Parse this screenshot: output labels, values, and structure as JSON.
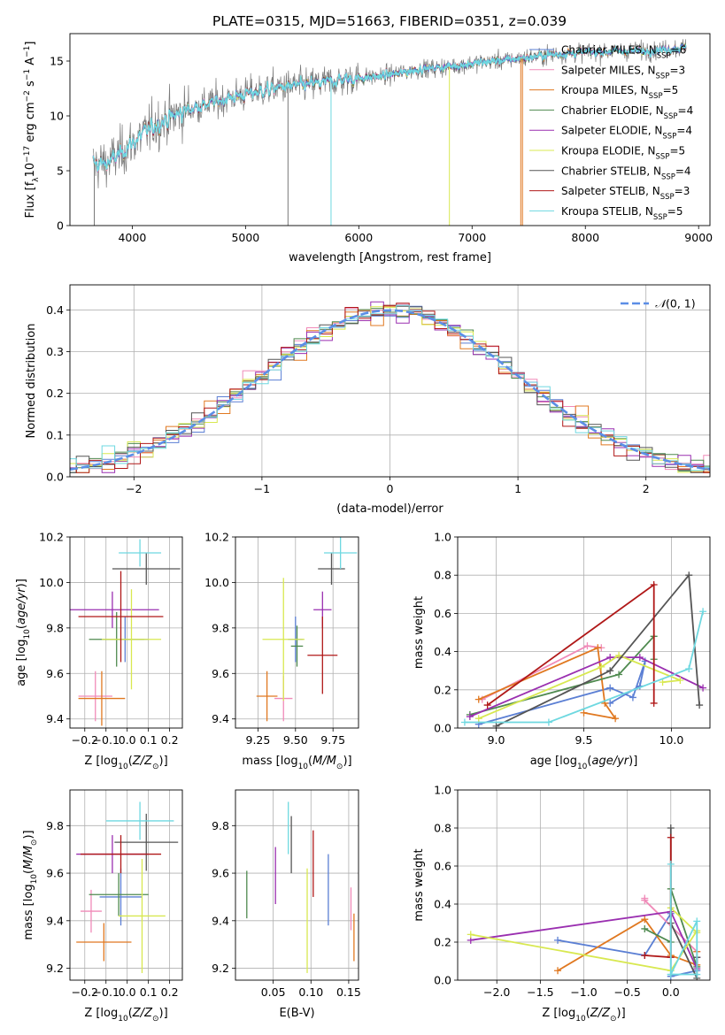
{
  "title": "PLATE=0315, MJD=51663, FIBERID=0351, z=0.039",
  "colors": {
    "c0": "#5b7fd4",
    "c1": "#f08ab8",
    "c2": "#e07820",
    "c3": "#4f8a4f",
    "c4": "#9a2fb0",
    "c5": "#d8e850",
    "c6": "#555555",
    "c7": "#b01818",
    "c8": "#6ed8e0",
    "grid": "#b0b0b0"
  },
  "chart_data": [
    {
      "id": "spectrum",
      "type": "line",
      "xlabel": "wavelength [Angstrom, rest frame]",
      "ylabel": "Flux [f_λ10^-17 erg cm^-2 s^-1 A^-1]",
      "xlim": [
        3450,
        9100
      ],
      "ylim": [
        0,
        17.5
      ],
      "xticks": [
        4000,
        5000,
        6000,
        7000,
        8000,
        9000
      ],
      "yticks": [
        0,
        5,
        10,
        15
      ],
      "grid": false,
      "legend_position": "top-right",
      "observed_trend": {
        "x": [
          3650,
          3800,
          4000,
          4200,
          4500,
          4800,
          5000,
          5300,
          5600,
          5900,
          6200,
          6500,
          6800,
          7100,
          7400,
          7700,
          8000,
          8300,
          8600,
          8900
        ],
        "y": [
          5.5,
          5.8,
          7.5,
          9.2,
          10.6,
          11.5,
          12.0,
          12.6,
          12.9,
          13.4,
          13.6,
          14.2,
          14.5,
          14.9,
          15.2,
          15.6,
          15.8,
          15.9,
          16.0,
          16.2
        ]
      },
      "series": [
        {
          "name": "Chabrier MILES",
          "nssp": "N_SSP=6"
        },
        {
          "name": "Salpeter MILES",
          "nssp": "N_SSP=3"
        },
        {
          "name": "Kroupa MILES",
          "nssp": "N_SSP=5"
        },
        {
          "name": "Chabrier ELODIE",
          "nssp": "N_SSP=4"
        },
        {
          "name": "Salpeter ELODIE",
          "nssp": "N_SSP=4"
        },
        {
          "name": "Kroupa ELODIE",
          "nssp": "N_SSP=5"
        },
        {
          "name": "Chabrier STELIB",
          "nssp": "N_SSP=4"
        },
        {
          "name": "Salpeter STELIB",
          "nssp": "N_SSP=3"
        },
        {
          "name": "Kroupa STELIB",
          "nssp": "N_SSP=5"
        }
      ]
    },
    {
      "id": "residuals",
      "type": "line",
      "xlabel": "(data-model)/error",
      "ylabel": "Normed distribution",
      "xlim": [
        -2.5,
        2.5
      ],
      "ylim": [
        0,
        0.46
      ],
      "xticks": [
        -2,
        -1,
        0,
        1,
        2
      ],
      "yticks": [
        0.0,
        0.1,
        0.2,
        0.3,
        0.4
      ],
      "grid": true,
      "legend_position": "top-right",
      "legend": "N(0,1)",
      "bin_width": 0.1
    },
    {
      "id": "age-vs-Z",
      "type": "scatter",
      "xlabel": "Z [log10(Z/Z⊙)]",
      "ylabel": "age [log10(age/yr)]",
      "xlim": [
        -0.27,
        0.26
      ],
      "ylim": [
        9.36,
        10.2
      ],
      "xticks": [
        -0.2,
        -0.1,
        0.0,
        0.1,
        0.2
      ],
      "yticks": [
        9.4,
        9.6,
        9.8,
        10.0,
        10.2
      ],
      "grid": true,
      "points": [
        {
          "x": -0.01,
          "y": 9.75,
          "xerr": 0.11,
          "yerr": 0.1
        },
        {
          "x": -0.15,
          "y": 9.5,
          "xerr": 0.08,
          "yerr": 0.11
        },
        {
          "x": -0.12,
          "y": 9.49,
          "xerr": 0.11,
          "yerr": 0.12
        },
        {
          "x": -0.05,
          "y": 9.75,
          "xerr": 0.13,
          "yerr": 0.12
        },
        {
          "x": -0.07,
          "y": 9.88,
          "xerr": 0.22,
          "yerr": 0.08
        },
        {
          "x": 0.02,
          "y": 9.75,
          "xerr": 0.14,
          "yerr": 0.22
        },
        {
          "x": 0.09,
          "y": 10.06,
          "xerr": 0.16,
          "yerr": 0.07
        },
        {
          "x": -0.03,
          "y": 9.85,
          "xerr": 0.2,
          "yerr": 0.2
        },
        {
          "x": 0.06,
          "y": 10.13,
          "xerr": 0.1,
          "yerr": 0.06
        }
      ]
    },
    {
      "id": "age-vs-mass",
      "type": "scatter",
      "xlabel": "mass [log10(M/M⊙)]",
      "ylabel": "",
      "xlim": [
        9.1,
        9.92
      ],
      "ylim": [
        9.36,
        10.2
      ],
      "xticks": [
        9.25,
        9.5,
        9.75
      ],
      "yticks": [
        9.4,
        9.6,
        9.8,
        10.0,
        10.2
      ],
      "grid": true,
      "points": [
        {
          "x": 9.5,
          "y": 9.75,
          "xerr": 0.05,
          "yerr": 0.1
        },
        {
          "x": 9.42,
          "y": 9.49,
          "xerr": 0.06,
          "yerr": 0.1
        },
        {
          "x": 9.31,
          "y": 9.5,
          "xerr": 0.07,
          "yerr": 0.11
        },
        {
          "x": 9.51,
          "y": 9.72,
          "xerr": 0.04,
          "yerr": 0.09
        },
        {
          "x": 9.68,
          "y": 9.88,
          "xerr": 0.06,
          "yerr": 0.08
        },
        {
          "x": 9.42,
          "y": 9.75,
          "xerr": 0.14,
          "yerr": 0.27
        },
        {
          "x": 9.74,
          "y": 10.06,
          "xerr": 0.09,
          "yerr": 0.07
        },
        {
          "x": 9.68,
          "y": 9.68,
          "xerr": 0.1,
          "yerr": 0.17
        },
        {
          "x": 9.8,
          "y": 10.13,
          "xerr": 0.11,
          "yerr": 0.07
        }
      ]
    },
    {
      "id": "weight-vs-age",
      "type": "line",
      "xlabel": "age [log10(age/yr)]",
      "ylabel": "mass weight",
      "xlim": [
        8.78,
        10.22
      ],
      "ylim": [
        0,
        1.0
      ],
      "xticks": [
        9.0,
        9.5,
        10.0
      ],
      "yticks": [
        0.0,
        0.2,
        0.4,
        0.6,
        0.8,
        1.0
      ],
      "grid": true,
      "series": [
        {
          "x": [
            8.9,
            9.65,
            9.78,
            9.85,
            9.82,
            9.65
          ],
          "y": [
            0.02,
            0.21,
            0.16,
            0.35,
            0.22,
            0.13
          ]
        },
        {
          "x": [
            8.92,
            9.52,
            9.6
          ],
          "y": [
            0.15,
            0.43,
            0.42
          ]
        },
        {
          "x": [
            8.9,
            9.58,
            9.62,
            9.68,
            9.5
          ],
          "y": [
            0.15,
            0.42,
            0.13,
            0.05,
            0.08
          ]
        },
        {
          "x": [
            8.85,
            9.7,
            9.9,
            9.9
          ],
          "y": [
            0.07,
            0.28,
            0.48,
            0.36
          ]
        },
        {
          "x": [
            8.85,
            9.65,
            9.82,
            10.18
          ],
          "y": [
            0.06,
            0.37,
            0.37,
            0.21
          ]
        },
        {
          "x": [
            8.9,
            9.6,
            9.7,
            10.05,
            9.95
          ],
          "y": [
            0.05,
            0.32,
            0.38,
            0.25,
            0.24
          ]
        },
        {
          "x": [
            9.0,
            9.65,
            10.1,
            10.16
          ],
          "y": [
            0.01,
            0.3,
            0.8,
            0.12
          ]
        },
        {
          "x": [
            8.95,
            9.9,
            9.9
          ],
          "y": [
            0.12,
            0.75,
            0.13
          ]
        },
        {
          "x": [
            8.82,
            9.3,
            10.1,
            10.18
          ],
          "y": [
            0.03,
            0.03,
            0.31,
            0.61
          ]
        }
      ]
    },
    {
      "id": "mass-vs-Z",
      "type": "scatter",
      "xlabel": "Z [log10(Z/Z⊙)]",
      "ylabel": "mass [log10(M/M⊙)]",
      "xlim": [
        -0.27,
        0.26
      ],
      "ylim": [
        9.15,
        9.95
      ],
      "xticks": [
        -0.2,
        -0.1,
        0.0,
        0.1,
        0.2
      ],
      "yticks": [
        9.2,
        9.4,
        9.6,
        9.8
      ],
      "grid": true,
      "points": [
        {
          "x": -0.03,
          "y": 9.5,
          "xerr": 0.1,
          "yerr": 0.12
        },
        {
          "x": -0.17,
          "y": 9.44,
          "xerr": 0.05,
          "yerr": 0.09
        },
        {
          "x": -0.11,
          "y": 9.31,
          "xerr": 0.13,
          "yerr": 0.08
        },
        {
          "x": -0.04,
          "y": 9.51,
          "xerr": 0.14,
          "yerr": 0.09
        },
        {
          "x": -0.07,
          "y": 9.68,
          "xerr": 0.17,
          "yerr": 0.08
        },
        {
          "x": 0.07,
          "y": 9.42,
          "xerr": 0.11,
          "yerr": 0.24
        },
        {
          "x": 0.09,
          "y": 9.73,
          "xerr": 0.15,
          "yerr": 0.12
        },
        {
          "x": -0.03,
          "y": 9.68,
          "xerr": 0.19,
          "yerr": 0.08
        },
        {
          "x": 0.06,
          "y": 9.82,
          "xerr": 0.16,
          "yerr": 0.08
        }
      ]
    },
    {
      "id": "mass-vs-EBV",
      "type": "scatter",
      "xlabel": "E(B-V)",
      "ylabel": "",
      "xlim": [
        0.0,
        0.163
      ],
      "ylim": [
        9.15,
        9.95
      ],
      "xticks": [
        0.05,
        0.1,
        0.15
      ],
      "yticks": [
        9.2,
        9.4,
        9.6,
        9.8
      ],
      "grid": true,
      "points": [
        {
          "x": 0.123,
          "y": 9.53,
          "yerr": 0.15
        },
        {
          "x": 0.153,
          "y": 9.45,
          "yerr": 0.09
        },
        {
          "x": 0.157,
          "y": 9.33,
          "yerr": 0.1
        },
        {
          "x": 0.015,
          "y": 9.51,
          "yerr": 0.1
        },
        {
          "x": 0.053,
          "y": 9.59,
          "yerr": 0.12
        },
        {
          "x": 0.095,
          "y": 9.4,
          "yerr": 0.22
        },
        {
          "x": 0.074,
          "y": 9.72,
          "yerr": 0.12
        },
        {
          "x": 0.103,
          "y": 9.64,
          "yerr": 0.14
        },
        {
          "x": 0.07,
          "y": 9.79,
          "yerr": 0.11
        }
      ]
    },
    {
      "id": "weight-vs-Z",
      "type": "line",
      "xlabel": "Z [log10(Z/Z⊙)]",
      "ylabel": "mass weight",
      "xlim": [
        -2.45,
        0.45
      ],
      "ylim": [
        0,
        1.0
      ],
      "xticks": [
        -2.0,
        -1.5,
        -1.0,
        -0.5,
        0.0
      ],
      "yticks": [
        0.0,
        0.2,
        0.4,
        0.6,
        0.8,
        1.0
      ],
      "grid": true,
      "series": [
        {
          "x": [
            -1.3,
            -0.3,
            0.0,
            0.0,
            0.3
          ],
          "y": [
            0.21,
            0.13,
            0.35,
            0.02,
            0.05
          ]
        },
        {
          "x": [
            -0.3,
            -0.3,
            0.3
          ],
          "y": [
            0.43,
            0.42,
            0.15
          ]
        },
        {
          "x": [
            -1.3,
            -0.3,
            0.0,
            0.3,
            0.3
          ],
          "y": [
            0.05,
            0.32,
            0.13,
            0.08,
            0.15
          ]
        },
        {
          "x": [
            -0.3,
            0.0,
            0.0,
            0.3
          ],
          "y": [
            0.27,
            0.2,
            0.48,
            0.07
          ]
        },
        {
          "x": [
            -2.3,
            0.0,
            0.3,
            0.3
          ],
          "y": [
            0.21,
            0.36,
            0.06,
            0.12
          ]
        },
        {
          "x": [
            -2.3,
            0.0,
            0.3,
            0.3,
            0.0
          ],
          "y": [
            0.24,
            0.05,
            0.26,
            0.25,
            0.38
          ]
        },
        {
          "x": [
            0.0,
            0.0,
            0.3,
            0.3
          ],
          "y": [
            0.8,
            0.3,
            0.01,
            0.12
          ]
        },
        {
          "x": [
            -0.3,
            0.0,
            0.0
          ],
          "y": [
            0.13,
            0.12,
            0.75
          ]
        },
        {
          "x": [
            0.0,
            0.0,
            0.3,
            0.3,
            0.0
          ],
          "y": [
            0.61,
            0.03,
            0.03,
            0.31,
            0.03
          ]
        }
      ]
    }
  ]
}
